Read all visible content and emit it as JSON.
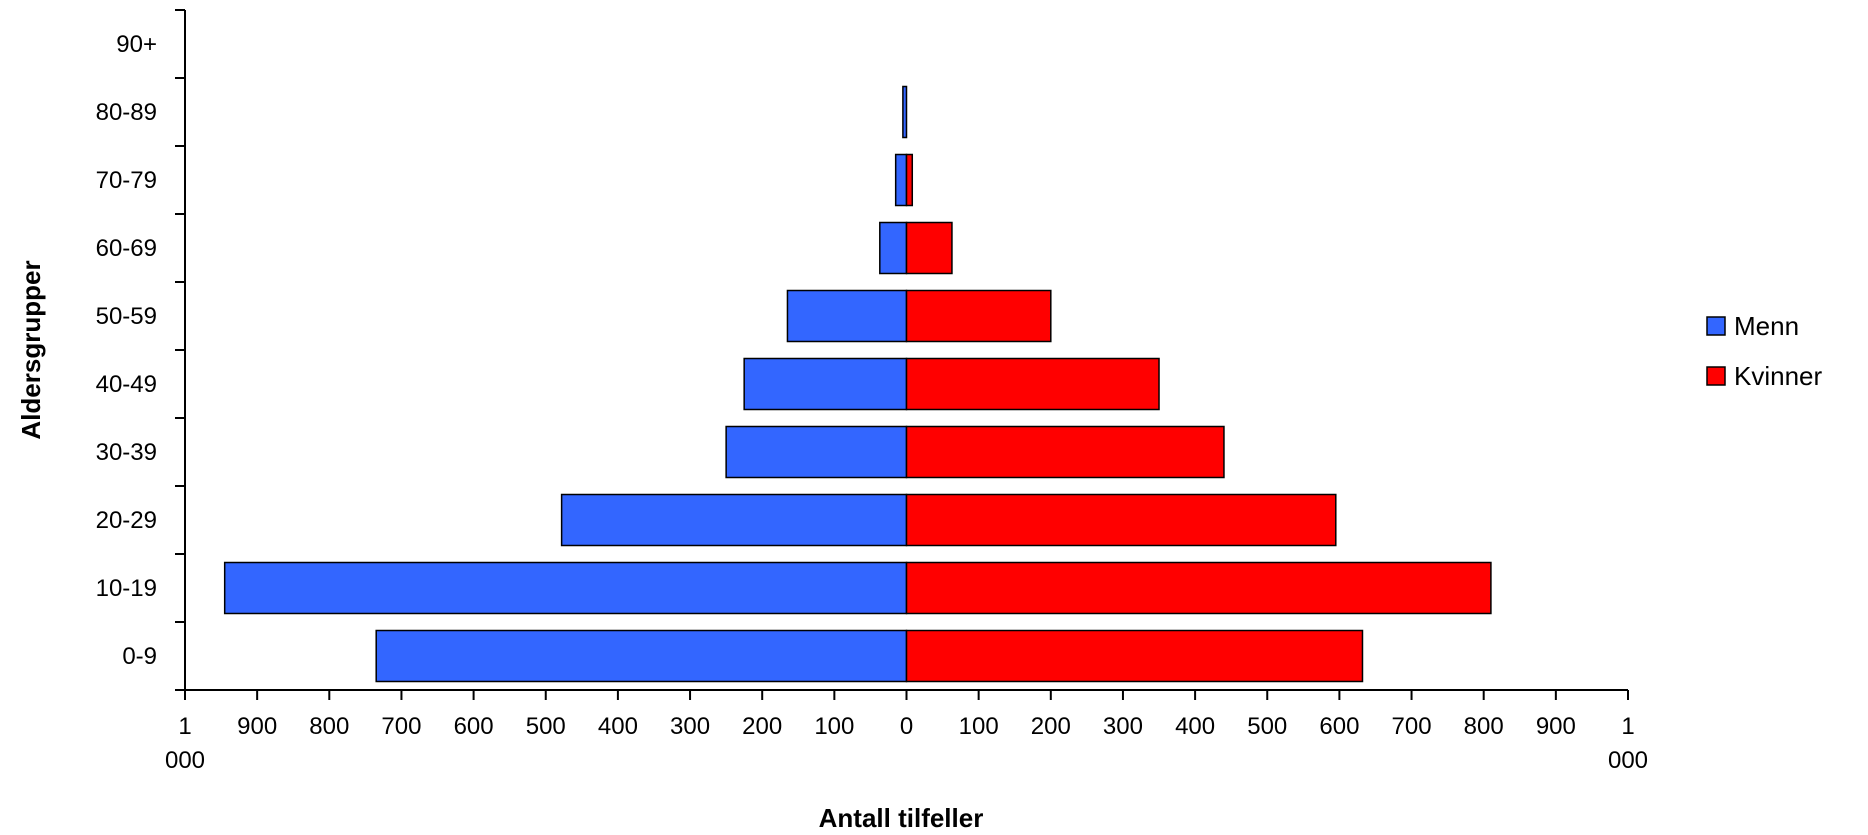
{
  "chart_data": {
    "type": "bar",
    "orientation": "horizontal",
    "layout": "population-pyramid",
    "categories": [
      "0-9",
      "10-19",
      "20-29",
      "30-39",
      "40-49",
      "50-59",
      "60-69",
      "70-79",
      "80-89",
      "90+"
    ],
    "series": [
      {
        "name": "Menn",
        "values": [
          735,
          945,
          478,
          250,
          225,
          165,
          37,
          15,
          5,
          0
        ],
        "color": "#3366ff",
        "side": "left"
      },
      {
        "name": "Kvinner",
        "values": [
          632,
          810,
          595,
          440,
          350,
          200,
          63,
          8,
          0,
          0
        ],
        "color": "#ff0000",
        "side": "right"
      }
    ],
    "xlabel": "Antall tilfeller",
    "ylabel": "Aldersgrupper",
    "xlim": [
      -1000,
      1000
    ],
    "x_tick_values": [
      -1000,
      -900,
      -800,
      -700,
      -600,
      -500,
      -400,
      -300,
      -200,
      -100,
      0,
      100,
      200,
      300,
      400,
      500,
      600,
      700,
      800,
      900,
      1000
    ],
    "x_tick_labels": [
      "1 000",
      "900",
      "800",
      "700",
      "600",
      "500",
      "400",
      "300",
      "200",
      "100",
      "0",
      "100",
      "200",
      "300",
      "400",
      "500",
      "600",
      "700",
      "800",
      "900",
      "1 000"
    ],
    "grid": false,
    "legend_position": "right"
  }
}
